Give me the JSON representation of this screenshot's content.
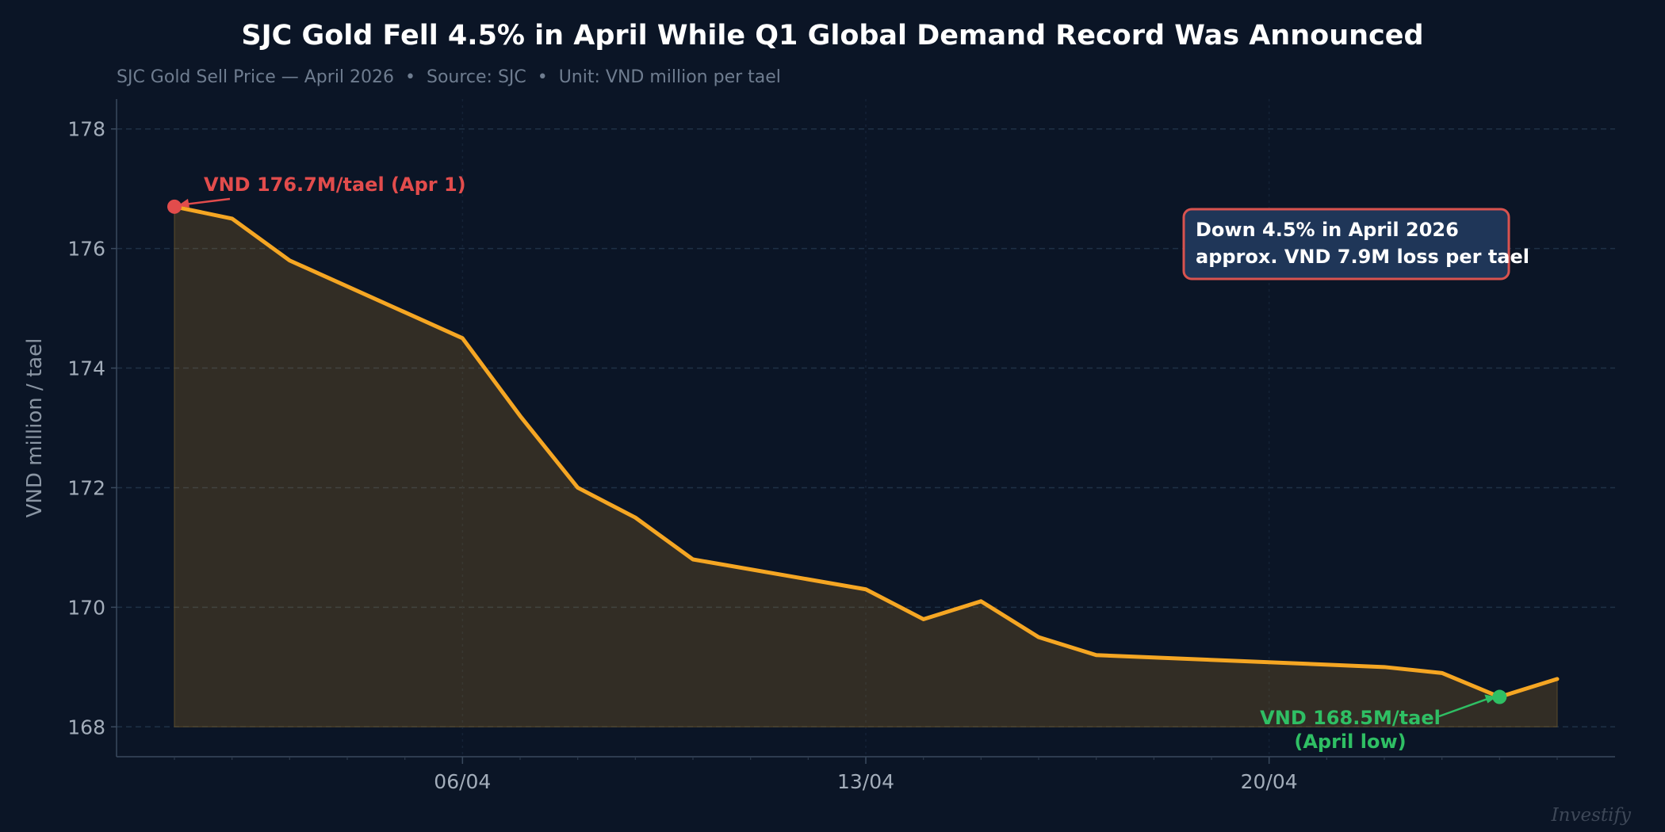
{
  "chart_data": {
    "type": "area",
    "title": "SJC Gold Fell 4.5% in April While Q1 Global Demand Record Was Announced",
    "subtitle": "SJC Gold Sell Price — April 2026  •  Source: SJC  •  Unit: VND million per tael",
    "ylabel": "VND million / tael",
    "xlabel": "",
    "ylim": [
      167.5,
      178.5
    ],
    "yticks": [
      168,
      170,
      172,
      174,
      176,
      178
    ],
    "x_start_date": "2026-04-01",
    "x_end_date": "2026-04-25",
    "xticks": [
      {
        "date": "2026-04-06",
        "label": "06/04"
      },
      {
        "date": "2026-04-13",
        "label": "13/04"
      },
      {
        "date": "2026-04-20",
        "label": "20/04"
      }
    ],
    "series": [
      {
        "name": "SJC Gold Sell Price",
        "color": "#f5a623",
        "points": [
          {
            "date": "2026-04-01",
            "y": 176.7
          },
          {
            "date": "2026-04-02",
            "y": 176.5
          },
          {
            "date": "2026-04-03",
            "y": 175.8
          },
          {
            "date": "2026-04-06",
            "y": 174.5
          },
          {
            "date": "2026-04-07",
            "y": 173.2
          },
          {
            "date": "2026-04-08",
            "y": 172.0
          },
          {
            "date": "2026-04-09",
            "y": 171.5
          },
          {
            "date": "2026-04-10",
            "y": 170.8
          },
          {
            "date": "2026-04-13",
            "y": 170.3
          },
          {
            "date": "2026-04-14",
            "y": 169.8
          },
          {
            "date": "2026-04-15",
            "y": 170.1
          },
          {
            "date": "2026-04-16",
            "y": 169.5
          },
          {
            "date": "2026-04-17",
            "y": 169.2
          },
          {
            "date": "2026-04-22",
            "y": 169.0
          },
          {
            "date": "2026-04-23",
            "y": 168.9
          },
          {
            "date": "2026-04-24",
            "y": 168.5
          },
          {
            "date": "2026-04-25",
            "y": 168.8
          }
        ]
      }
    ],
    "annotations": {
      "high": {
        "date": "2026-04-01",
        "y": 176.7,
        "text": "VND 176.7M/tael (Apr 1)",
        "color": "#e24c4c"
      },
      "low": {
        "date": "2026-04-24",
        "y": 168.5,
        "line1": "VND 168.5M/tael",
        "line2": "(April low)",
        "color": "#2fbf64"
      },
      "box": {
        "line1": "Down 4.5% in April 2026",
        "line2": "approx. VND 7.9M loss per tael",
        "border_color": "#d9534f",
        "fill_color": "#1f3658"
      }
    },
    "grid": true,
    "legend": "none"
  },
  "watermark": "Investify"
}
